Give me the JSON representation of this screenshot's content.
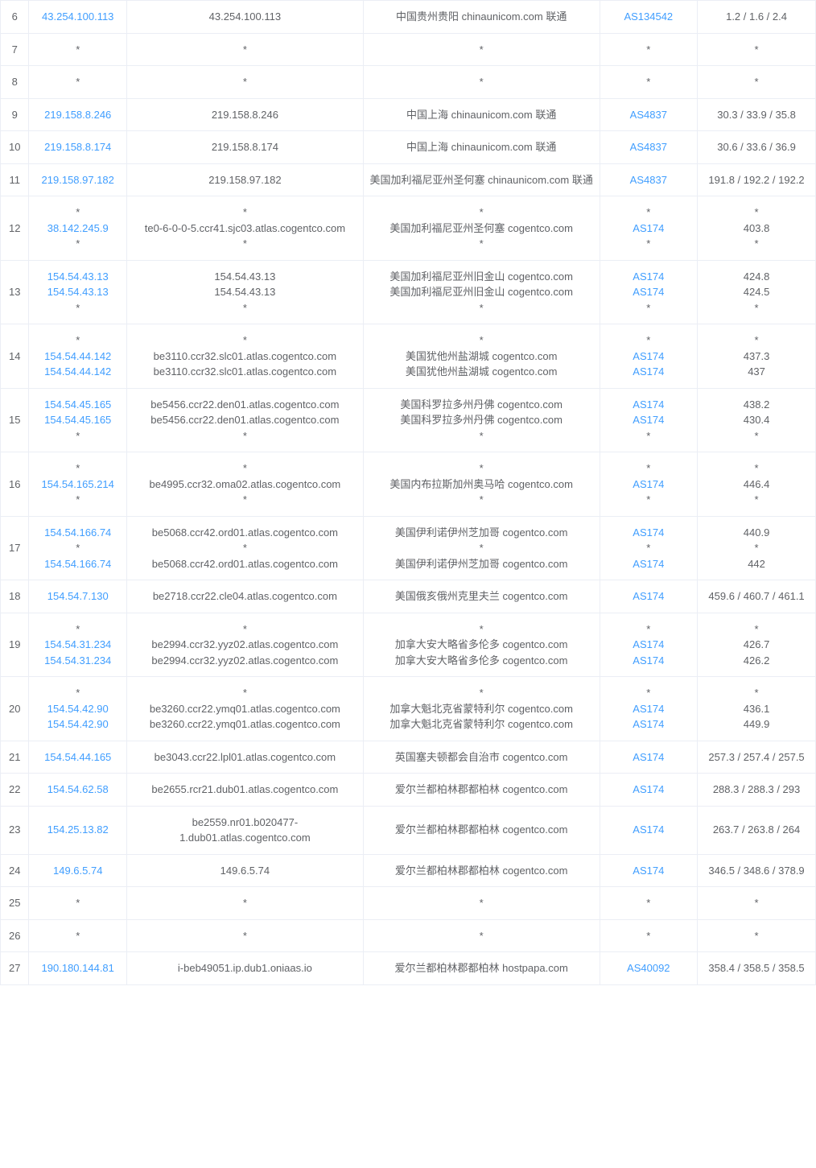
{
  "colors": {
    "link": "#409eff",
    "text": "#606266",
    "border": "#ebeef5",
    "background": "#ffffff"
  },
  "columns": [
    "hop",
    "ip",
    "host",
    "location",
    "asn",
    "latency"
  ],
  "rows": [
    {
      "hop": "6",
      "ip": [
        {
          "t": "43.254.100.113",
          "link": true
        }
      ],
      "host": [
        {
          "t": "43.254.100.113"
        }
      ],
      "loc": [
        {
          "t": "中国贵州贵阳 chinaunicom.com 联通"
        }
      ],
      "asn": [
        {
          "t": "AS134542",
          "link": true
        }
      ],
      "lat": [
        {
          "t": "1.2 / 1.6 / 2.4"
        }
      ]
    },
    {
      "hop": "7",
      "ip": [
        {
          "t": "*"
        }
      ],
      "host": [
        {
          "t": "*"
        }
      ],
      "loc": [
        {
          "t": "*"
        }
      ],
      "asn": [
        {
          "t": "*"
        }
      ],
      "lat": [
        {
          "t": "*"
        }
      ]
    },
    {
      "hop": "8",
      "ip": [
        {
          "t": "*"
        }
      ],
      "host": [
        {
          "t": "*"
        }
      ],
      "loc": [
        {
          "t": "*"
        }
      ],
      "asn": [
        {
          "t": "*"
        }
      ],
      "lat": [
        {
          "t": "*"
        }
      ]
    },
    {
      "hop": "9",
      "ip": [
        {
          "t": "219.158.8.246",
          "link": true
        }
      ],
      "host": [
        {
          "t": "219.158.8.246"
        }
      ],
      "loc": [
        {
          "t": "中国上海 chinaunicom.com 联通"
        }
      ],
      "asn": [
        {
          "t": "AS4837",
          "link": true
        }
      ],
      "lat": [
        {
          "t": "30.3 / 33.9 / 35.8"
        }
      ]
    },
    {
      "hop": "10",
      "ip": [
        {
          "t": "219.158.8.174",
          "link": true
        }
      ],
      "host": [
        {
          "t": "219.158.8.174"
        }
      ],
      "loc": [
        {
          "t": "中国上海 chinaunicom.com 联通"
        }
      ],
      "asn": [
        {
          "t": "AS4837",
          "link": true
        }
      ],
      "lat": [
        {
          "t": "30.6 / 33.6 / 36.9"
        }
      ]
    },
    {
      "hop": "11",
      "ip": [
        {
          "t": "219.158.97.182",
          "link": true
        }
      ],
      "host": [
        {
          "t": "219.158.97.182"
        }
      ],
      "loc": [
        {
          "t": "美国加利福尼亚州圣何塞 chinaunicom.com 联通"
        }
      ],
      "asn": [
        {
          "t": "AS4837",
          "link": true
        }
      ],
      "lat": [
        {
          "t": "191.8 / 192.2 / 192.2"
        }
      ]
    },
    {
      "hop": "12",
      "ip": [
        {
          "t": "*"
        },
        {
          "t": "38.142.245.9",
          "link": true
        },
        {
          "t": "*"
        }
      ],
      "host": [
        {
          "t": "*"
        },
        {
          "t": "te0-6-0-0-5.ccr41.sjc03.atlas.cogentco.com"
        },
        {
          "t": "*"
        }
      ],
      "loc": [
        {
          "t": "*"
        },
        {
          "t": "美国加利福尼亚州圣何塞 cogentco.com"
        },
        {
          "t": "*"
        }
      ],
      "asn": [
        {
          "t": "*"
        },
        {
          "t": "AS174",
          "link": true
        },
        {
          "t": "*"
        }
      ],
      "lat": [
        {
          "t": "*"
        },
        {
          "t": "403.8"
        },
        {
          "t": "*"
        }
      ]
    },
    {
      "hop": "13",
      "ip": [
        {
          "t": "154.54.43.13",
          "link": true
        },
        {
          "t": "154.54.43.13",
          "link": true
        },
        {
          "t": "*"
        }
      ],
      "host": [
        {
          "t": "154.54.43.13"
        },
        {
          "t": "154.54.43.13"
        },
        {
          "t": "*"
        }
      ],
      "loc": [
        {
          "t": "美国加利福尼亚州旧金山 cogentco.com"
        },
        {
          "t": "美国加利福尼亚州旧金山 cogentco.com"
        },
        {
          "t": "*"
        }
      ],
      "asn": [
        {
          "t": "AS174",
          "link": true
        },
        {
          "t": "AS174",
          "link": true
        },
        {
          "t": "*"
        }
      ],
      "lat": [
        {
          "t": "424.8"
        },
        {
          "t": "424.5"
        },
        {
          "t": "*"
        }
      ]
    },
    {
      "hop": "14",
      "ip": [
        {
          "t": "*"
        },
        {
          "t": "154.54.44.142",
          "link": true
        },
        {
          "t": "154.54.44.142",
          "link": true
        }
      ],
      "host": [
        {
          "t": "*"
        },
        {
          "t": "be3110.ccr32.slc01.atlas.cogentco.com"
        },
        {
          "t": "be3110.ccr32.slc01.atlas.cogentco.com"
        }
      ],
      "loc": [
        {
          "t": "*"
        },
        {
          "t": "美国犹他州盐湖城 cogentco.com"
        },
        {
          "t": "美国犹他州盐湖城 cogentco.com"
        }
      ],
      "asn": [
        {
          "t": "*"
        },
        {
          "t": "AS174",
          "link": true
        },
        {
          "t": "AS174",
          "link": true
        }
      ],
      "lat": [
        {
          "t": "*"
        },
        {
          "t": "437.3"
        },
        {
          "t": "437"
        }
      ]
    },
    {
      "hop": "15",
      "ip": [
        {
          "t": "154.54.45.165",
          "link": true
        },
        {
          "t": "154.54.45.165",
          "link": true
        },
        {
          "t": "*"
        }
      ],
      "host": [
        {
          "t": "be5456.ccr22.den01.atlas.cogentco.com"
        },
        {
          "t": "be5456.ccr22.den01.atlas.cogentco.com"
        },
        {
          "t": "*"
        }
      ],
      "loc": [
        {
          "t": "美国科罗拉多州丹佛 cogentco.com"
        },
        {
          "t": "美国科罗拉多州丹佛 cogentco.com"
        },
        {
          "t": "*"
        }
      ],
      "asn": [
        {
          "t": "AS174",
          "link": true
        },
        {
          "t": "AS174",
          "link": true
        },
        {
          "t": "*"
        }
      ],
      "lat": [
        {
          "t": "438.2"
        },
        {
          "t": "430.4"
        },
        {
          "t": "*"
        }
      ]
    },
    {
      "hop": "16",
      "ip": [
        {
          "t": "*"
        },
        {
          "t": "154.54.165.214",
          "link": true
        },
        {
          "t": "*"
        }
      ],
      "host": [
        {
          "t": "*"
        },
        {
          "t": "be4995.ccr32.oma02.atlas.cogentco.com"
        },
        {
          "t": "*"
        }
      ],
      "loc": [
        {
          "t": "*"
        },
        {
          "t": "美国内布拉斯加州奥马哈 cogentco.com"
        },
        {
          "t": "*"
        }
      ],
      "asn": [
        {
          "t": "*"
        },
        {
          "t": "AS174",
          "link": true
        },
        {
          "t": "*"
        }
      ],
      "lat": [
        {
          "t": "*"
        },
        {
          "t": "446.4"
        },
        {
          "t": "*"
        }
      ]
    },
    {
      "hop": "17",
      "ip": [
        {
          "t": "154.54.166.74",
          "link": true
        },
        {
          "t": "*"
        },
        {
          "t": "154.54.166.74",
          "link": true
        }
      ],
      "host": [
        {
          "t": "be5068.ccr42.ord01.atlas.cogentco.com"
        },
        {
          "t": "*"
        },
        {
          "t": "be5068.ccr42.ord01.atlas.cogentco.com"
        }
      ],
      "loc": [
        {
          "t": "美国伊利诺伊州芝加哥 cogentco.com"
        },
        {
          "t": "*"
        },
        {
          "t": "美国伊利诺伊州芝加哥 cogentco.com"
        }
      ],
      "asn": [
        {
          "t": "AS174",
          "link": true
        },
        {
          "t": "*"
        },
        {
          "t": "AS174",
          "link": true
        }
      ],
      "lat": [
        {
          "t": "440.9"
        },
        {
          "t": "*"
        },
        {
          "t": "442"
        }
      ]
    },
    {
      "hop": "18",
      "ip": [
        {
          "t": "154.54.7.130",
          "link": true
        }
      ],
      "host": [
        {
          "t": "be2718.ccr22.cle04.atlas.cogentco.com"
        }
      ],
      "loc": [
        {
          "t": "美国俄亥俄州克里夫兰 cogentco.com"
        }
      ],
      "asn": [
        {
          "t": "AS174",
          "link": true
        }
      ],
      "lat": [
        {
          "t": "459.6 / 460.7 / 461.1"
        }
      ]
    },
    {
      "hop": "19",
      "ip": [
        {
          "t": "*"
        },
        {
          "t": "154.54.31.234",
          "link": true
        },
        {
          "t": "154.54.31.234",
          "link": true
        }
      ],
      "host": [
        {
          "t": "*"
        },
        {
          "t": "be2994.ccr32.yyz02.atlas.cogentco.com"
        },
        {
          "t": "be2994.ccr32.yyz02.atlas.cogentco.com"
        }
      ],
      "loc": [
        {
          "t": "*"
        },
        {
          "t": "加拿大安大略省多伦多 cogentco.com"
        },
        {
          "t": "加拿大安大略省多伦多 cogentco.com"
        }
      ],
      "asn": [
        {
          "t": "*"
        },
        {
          "t": "AS174",
          "link": true
        },
        {
          "t": "AS174",
          "link": true
        }
      ],
      "lat": [
        {
          "t": "*"
        },
        {
          "t": "426.7"
        },
        {
          "t": "426.2"
        }
      ]
    },
    {
      "hop": "20",
      "ip": [
        {
          "t": "*"
        },
        {
          "t": "154.54.42.90",
          "link": true
        },
        {
          "t": "154.54.42.90",
          "link": true
        }
      ],
      "host": [
        {
          "t": "*"
        },
        {
          "t": "be3260.ccr22.ymq01.atlas.cogentco.com"
        },
        {
          "t": "be3260.ccr22.ymq01.atlas.cogentco.com"
        }
      ],
      "loc": [
        {
          "t": "*"
        },
        {
          "t": "加拿大魁北克省蒙特利尔 cogentco.com"
        },
        {
          "t": "加拿大魁北克省蒙特利尔 cogentco.com"
        }
      ],
      "asn": [
        {
          "t": "*"
        },
        {
          "t": "AS174",
          "link": true
        },
        {
          "t": "AS174",
          "link": true
        }
      ],
      "lat": [
        {
          "t": "*"
        },
        {
          "t": "436.1"
        },
        {
          "t": "449.9"
        }
      ]
    },
    {
      "hop": "21",
      "ip": [
        {
          "t": "154.54.44.165",
          "link": true
        }
      ],
      "host": [
        {
          "t": "be3043.ccr22.lpl01.atlas.cogentco.com"
        }
      ],
      "loc": [
        {
          "t": "英国塞夫顿都会自治市 cogentco.com"
        }
      ],
      "asn": [
        {
          "t": "AS174",
          "link": true
        }
      ],
      "lat": [
        {
          "t": "257.3 / 257.4 / 257.5"
        }
      ]
    },
    {
      "hop": "22",
      "ip": [
        {
          "t": "154.54.62.58",
          "link": true
        }
      ],
      "host": [
        {
          "t": "be2655.rcr21.dub01.atlas.cogentco.com"
        }
      ],
      "loc": [
        {
          "t": "爱尔兰都柏林郡都柏林 cogentco.com"
        }
      ],
      "asn": [
        {
          "t": "AS174",
          "link": true
        }
      ],
      "lat": [
        {
          "t": "288.3 / 288.3 / 293"
        }
      ]
    },
    {
      "hop": "23",
      "ip": [
        {
          "t": "154.25.13.82",
          "link": true
        }
      ],
      "host": [
        {
          "t": "be2559.nr01.b020477-1.dub01.atlas.cogentco.com"
        }
      ],
      "loc": [
        {
          "t": "爱尔兰都柏林郡都柏林 cogentco.com"
        }
      ],
      "asn": [
        {
          "t": "AS174",
          "link": true
        }
      ],
      "lat": [
        {
          "t": "263.7 / 263.8 / 264"
        }
      ]
    },
    {
      "hop": "24",
      "ip": [
        {
          "t": "149.6.5.74",
          "link": true
        }
      ],
      "host": [
        {
          "t": "149.6.5.74"
        }
      ],
      "loc": [
        {
          "t": "爱尔兰都柏林郡都柏林 cogentco.com"
        }
      ],
      "asn": [
        {
          "t": "AS174",
          "link": true
        }
      ],
      "lat": [
        {
          "t": "346.5 / 348.6 / 378.9"
        }
      ]
    },
    {
      "hop": "25",
      "ip": [
        {
          "t": "*"
        }
      ],
      "host": [
        {
          "t": "*"
        }
      ],
      "loc": [
        {
          "t": "*"
        }
      ],
      "asn": [
        {
          "t": "*"
        }
      ],
      "lat": [
        {
          "t": "*"
        }
      ]
    },
    {
      "hop": "26",
      "ip": [
        {
          "t": "*"
        }
      ],
      "host": [
        {
          "t": "*"
        }
      ],
      "loc": [
        {
          "t": "*"
        }
      ],
      "asn": [
        {
          "t": "*"
        }
      ],
      "lat": [
        {
          "t": "*"
        }
      ]
    },
    {
      "hop": "27",
      "ip": [
        {
          "t": "190.180.144.81",
          "link": true
        }
      ],
      "host": [
        {
          "t": "i-beb49051.ip.dub1.oniaas.io"
        }
      ],
      "loc": [
        {
          "t": "爱尔兰都柏林郡都柏林 hostpapa.com"
        }
      ],
      "asn": [
        {
          "t": "AS40092",
          "link": true
        }
      ],
      "lat": [
        {
          "t": "358.4 / 358.5 / 358.5"
        }
      ]
    }
  ]
}
